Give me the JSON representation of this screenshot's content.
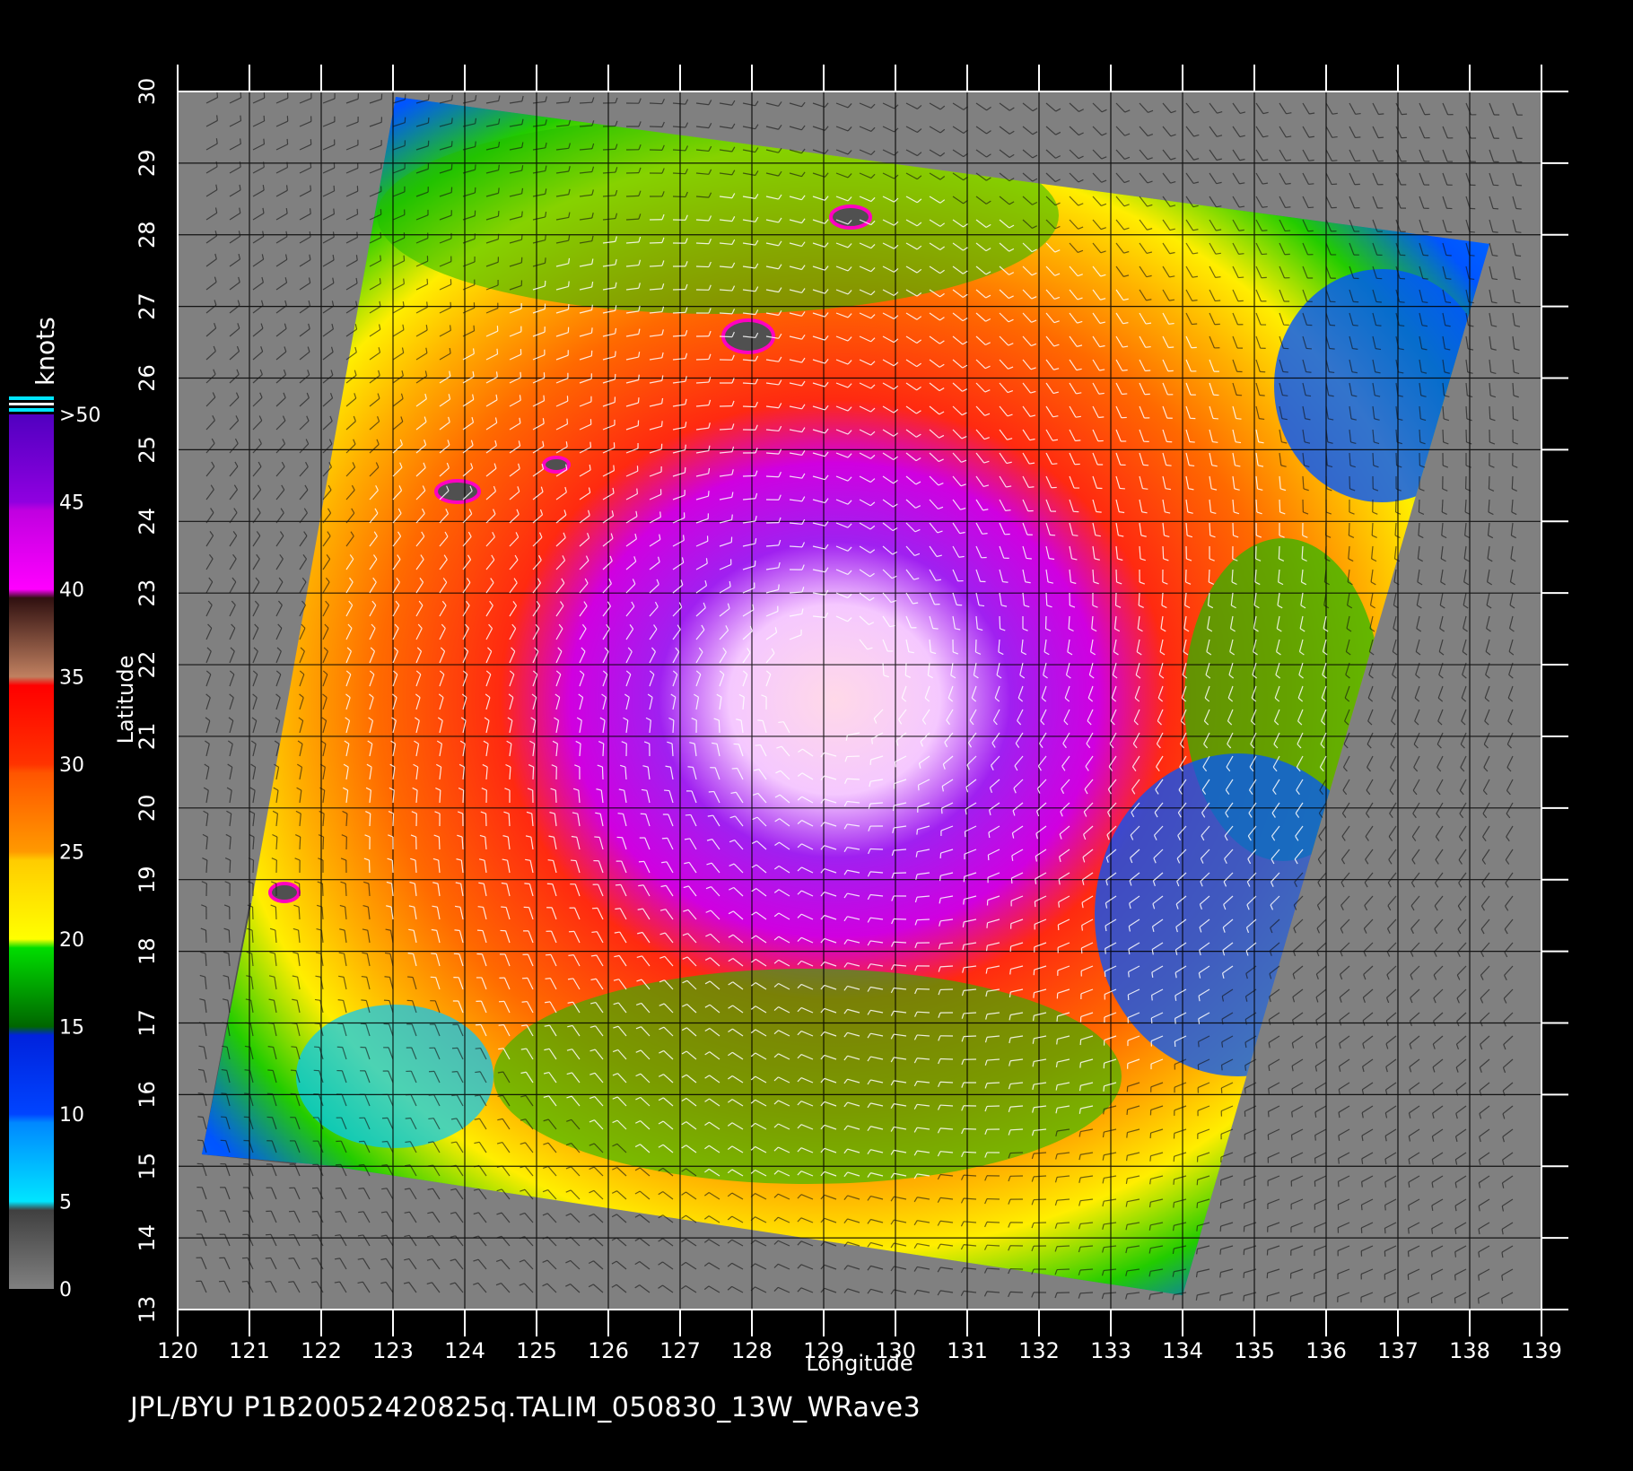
{
  "caption": "JPL/BYU  P1B20052420825q.TALIM_050830_13W_WRave3",
  "map": {
    "xlabel": "Longitude",
    "ylabel": "Latitude",
    "lon_range": [
      120,
      139
    ],
    "lat_range": [
      13,
      30
    ],
    "lon_ticks": [
      "120",
      "121",
      "122",
      "123",
      "124",
      "125",
      "126",
      "127",
      "128",
      "129",
      "130",
      "131",
      "132",
      "133",
      "134",
      "135",
      "136",
      "137",
      "138",
      "139"
    ],
    "lat_ticks": [
      "13",
      "14",
      "15",
      "16",
      "17",
      "18",
      "19",
      "20",
      "21",
      "22",
      "23",
      "24",
      "25",
      "26",
      "27",
      "28",
      "29",
      "30"
    ]
  },
  "colorbar": {
    "title": "knots",
    "labels": [
      "0",
      "5",
      "10",
      "15",
      "20",
      "25",
      "30",
      "35",
      "40",
      "45",
      ">50"
    ],
    "colors": {
      "0-5": "#5a5a5a",
      "5-10": "#00e5ff",
      "10-15": "#0044ff",
      "15-20": "#00cc00",
      "20-25": "#ffee00",
      "25-30": "#ff7700",
      "30-35": "#ff1100",
      "35-40": "#a0604a",
      "40-45": "#ff00ff",
      "45-50": "#8a00e0"
    }
  },
  "storm_center": {
    "lon": 129.1,
    "lat": 21.7
  }
}
